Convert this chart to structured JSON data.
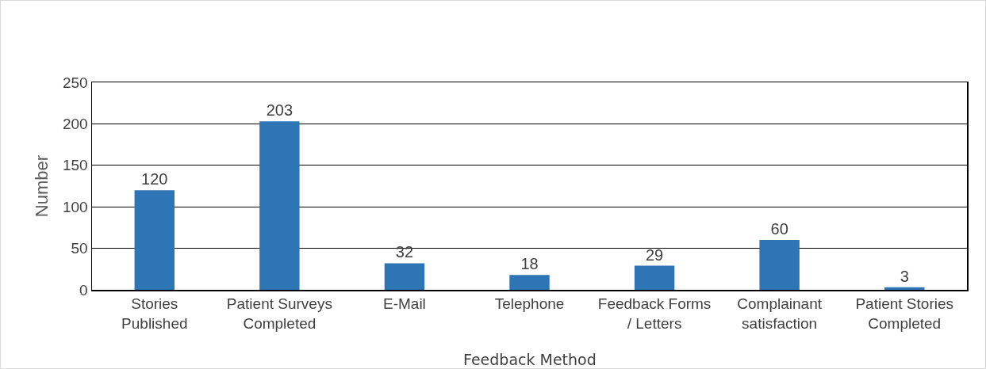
{
  "chart_data": {
    "type": "bar",
    "xlabel": "Feedback Method",
    "ylabel": "Number",
    "categories": [
      "Stories Published",
      "Patient Surveys Completed",
      "E-Mail",
      "Telephone",
      "Feedback Forms / Letters",
      "Complainant satisfaction",
      "Patient Stories Completed"
    ],
    "values": [
      120,
      203,
      32,
      18,
      29,
      60,
      3
    ],
    "color": "#2e75b6",
    "ylim": [
      0,
      250
    ],
    "yticks": [
      0,
      50,
      100,
      150,
      200,
      250
    ],
    "grid": "y",
    "data_labels": true
  }
}
